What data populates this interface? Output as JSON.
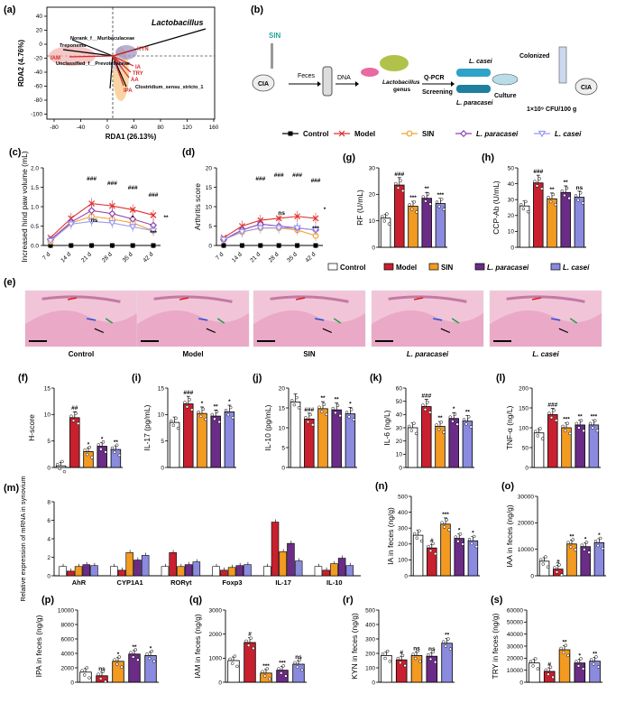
{
  "colors": {
    "control": "#ffffff",
    "model": "#c8202e",
    "sin": "#f39a21",
    "para": "#6a2c86",
    "casei": "#8a8adf",
    "legend_control": "#000000",
    "legend_model": "#e03030",
    "legend_sin": "#f5a030",
    "legend_para": "#8e44ad",
    "legend_casei": "#9a9aee"
  },
  "legend_top": [
    "Control",
    "Model",
    "SIN",
    "L. paracasei",
    "L. casei"
  ],
  "legend_bar": [
    "Control",
    "Model",
    "SIN",
    "L. paracasei",
    "L. casei"
  ],
  "panel_a": {
    "label": "(a)",
    "xlabel": "RDA1 (26.13%)",
    "ylabel": "RDA2 (4.76%)",
    "xticks": [
      "-80",
      "-40",
      "0",
      "40",
      "80",
      "120",
      "160"
    ],
    "yticks": [
      "40",
      "20",
      "0",
      "-20",
      "-40",
      "-60",
      "-80",
      "-100"
    ],
    "arrow_labels": [
      "Lactobacillus",
      "Norank_f__Muribaculaceae",
      "Treponema",
      "IAM",
      "KYN",
      "Unclassified_f__Prevotellaceae",
      "IA",
      "TRY",
      "AA",
      "IPA",
      "Clostridium_sensu_stricto_1"
    ]
  },
  "panel_b": {
    "label": "(b)",
    "texts": {
      "sin": "SIN",
      "cia1": "CIA",
      "feces": "Feces",
      "dna": "DNA",
      "lacto": "Lactobacillus",
      "genus": "genus",
      "qpcr": "Q-PCR",
      "screening": "Screening",
      "lcasei": "L. casei",
      "lpara": "L. paracasei",
      "culture": "Culture",
      "colonized": "Colonized",
      "cia2": "CIA",
      "dose": "1×10⁹ CFU/100 g"
    }
  },
  "line_xticks": [
    "7 d",
    "14 d",
    "21 d",
    "28 d",
    "35 d",
    "42 d"
  ],
  "panel_c": {
    "label": "(c)",
    "ylabel": "Increased hind paw volume (mL)",
    "yticks": [
      "0.0",
      "0.5",
      "1.0",
      "1.5",
      "2.0"
    ],
    "ylim": [
      0,
      2.0
    ],
    "sig": [
      "###",
      "###",
      "###",
      "###",
      "**",
      "*",
      "ns",
      "***"
    ]
  },
  "panel_d": {
    "label": "(d)",
    "ylabel": "Arthritis score",
    "yticks": [
      "0",
      "5",
      "10",
      "15",
      "20"
    ],
    "ylim": [
      0,
      20
    ],
    "sig": [
      "###",
      "###",
      "###",
      "###",
      "*",
      "ns",
      "***"
    ]
  },
  "bar_panels": {
    "g": {
      "label": "(g)",
      "ylabel": "RF (U/mL)",
      "yticks": [
        "0",
        "10",
        "20",
        "30"
      ],
      "ymax": 30,
      "sig": [
        "###",
        "***",
        "**",
        "***"
      ]
    },
    "h": {
      "label": "(h)",
      "ylabel": "CCP-Ab (U/mL)",
      "yticks": [
        "0",
        "10",
        "20",
        "30",
        "40",
        "50"
      ],
      "ymax": 50,
      "sig": [
        "###",
        "**",
        "**",
        "ns"
      ]
    },
    "f": {
      "label": "(f)",
      "ylabel": "H-score",
      "yticks": [
        "0",
        "5",
        "10",
        "15"
      ],
      "ymax": 15,
      "sig": [
        "##",
        "*",
        "*",
        "**"
      ]
    },
    "i": {
      "label": "(i)",
      "ylabel": "IL-17 (pg/mL)",
      "yticks": [
        "0",
        "5",
        "10",
        "15"
      ],
      "ymax": 15,
      "sig": [
        "###",
        "*",
        "**",
        "*"
      ]
    },
    "j": {
      "label": "(j)",
      "ylabel": "IL-10 (pg/mL)",
      "yticks": [
        "0",
        "5",
        "10",
        "15",
        "20"
      ],
      "ymax": 20,
      "sig": [
        "###",
        "**",
        "**",
        "*"
      ]
    },
    "k": {
      "label": "(k)",
      "ylabel": "IL-6 (ng/L)",
      "yticks": [
        "0",
        "10",
        "20",
        "30",
        "40",
        "50",
        "60"
      ],
      "ymax": 60,
      "sig": [
        "###",
        "**",
        "*",
        "**"
      ]
    },
    "l": {
      "label": "(l)",
      "ylabel": "TNF-α (ng/L)",
      "yticks": [
        "0",
        "50",
        "100",
        "150",
        "200"
      ],
      "ymax": 200,
      "sig": [
        "###",
        "***",
        "**",
        "***"
      ]
    },
    "n": {
      "label": "(n)",
      "ylabel": "IA in feces (ng/g)",
      "yticks": [
        "0",
        "100",
        "200",
        "300",
        "400",
        "500"
      ],
      "ymax": 500,
      "sig": [
        "#",
        "***",
        "*",
        "*"
      ]
    },
    "o": {
      "label": "(o)",
      "ylabel": "IAA in feces (ng/g)",
      "yticks": [
        "0",
        "10000",
        "20000",
        "30000"
      ],
      "ymax": 30000,
      "sig": [
        "#",
        "**",
        "*",
        "*"
      ]
    },
    "p": {
      "label": "(p)",
      "ylabel": "IPA in feces (ng/g)",
      "yticks": [
        "0",
        "2000",
        "4000",
        "6000",
        "8000",
        "10000"
      ],
      "ymax": 10000,
      "sig": [
        "ns",
        "*",
        "**",
        "*"
      ]
    },
    "q": {
      "label": "(q)",
      "ylabel": "IAM in feces (ng/g)",
      "yticks": [
        "0",
        "1000",
        "2000",
        "3000"
      ],
      "ymax": 3000,
      "sig": [
        "#",
        "***",
        "***",
        "ns"
      ]
    },
    "r": {
      "label": "(r)",
      "ylabel": "KYN in feces (ng/g)",
      "yticks": [
        "0",
        "100",
        "200",
        "300",
        "400",
        "500"
      ],
      "ymax": 500,
      "sig": [
        "#",
        "ns",
        "ns",
        "**"
      ]
    },
    "s": {
      "label": "(s)",
      "ylabel": "TRY in feces (ng/g)",
      "yticks": [
        "0",
        "10000",
        "20000",
        "30000",
        "40000",
        "50000",
        "60000"
      ],
      "ymax": 60000,
      "sig": [
        "#",
        "**",
        "*",
        "**"
      ]
    }
  },
  "panel_e": {
    "label": "(e)",
    "captions": [
      "Control",
      "Model",
      "SIN",
      "L. paracasei",
      "L. casei"
    ]
  },
  "panel_m": {
    "label": "(m)",
    "ylabel": "Relative expression of mRNA in synovium",
    "yticks": [
      "0",
      "2",
      "4",
      "6",
      "8"
    ],
    "ymax": 8,
    "genes": [
      "AhR",
      "CYP1A1",
      "RORγt",
      "Foxp3",
      "IL-17",
      "IL-10"
    ]
  },
  "chart_data": [
    {
      "panel": "c",
      "type": "line",
      "x": [
        "7 d",
        "14 d",
        "21 d",
        "28 d",
        "35 d",
        "42 d"
      ],
      "series": [
        {
          "name": "Control",
          "values": [
            0.0,
            0.0,
            0.0,
            0.0,
            0.0,
            0.0
          ]
        },
        {
          "name": "Model",
          "values": [
            0.2,
            0.7,
            1.08,
            1.02,
            0.92,
            0.78
          ]
        },
        {
          "name": "SIN",
          "values": [
            0.1,
            0.58,
            0.75,
            0.68,
            0.58,
            0.38
          ]
        },
        {
          "name": "L. paracasei",
          "values": [
            0.15,
            0.6,
            0.9,
            0.82,
            0.68,
            0.52
          ]
        },
        {
          "name": "L. casei",
          "values": [
            0.12,
            0.55,
            0.62,
            0.58,
            0.48,
            0.38
          ]
        }
      ]
    },
    {
      "panel": "d",
      "type": "line",
      "x": [
        "7 d",
        "14 d",
        "21 d",
        "28 d",
        "35 d",
        "42 d"
      ],
      "series": [
        {
          "name": "Control",
          "values": [
            0,
            0,
            0,
            0,
            0,
            0
          ]
        },
        {
          "name": "Model",
          "values": [
            2.0,
            5.0,
            6.5,
            7.0,
            7.5,
            7.0
          ]
        },
        {
          "name": "SIN",
          "values": [
            1.5,
            3.5,
            4.5,
            4.5,
            4.0,
            2.5
          ]
        },
        {
          "name": "L. paracasei",
          "values": [
            1.5,
            4.0,
            5.5,
            5.0,
            4.5,
            4.0
          ]
        },
        {
          "name": "L. casei",
          "values": [
            1.5,
            3.5,
            4.5,
            4.5,
            4.5,
            4.0
          ]
        }
      ]
    },
    {
      "panel": "g",
      "type": "bar",
      "categories": [
        "Control",
        "Model",
        "SIN",
        "L. paracasei",
        "L. casei"
      ],
      "values": [
        11,
        23.5,
        15.5,
        18.5,
        16.5
      ]
    },
    {
      "panel": "h",
      "type": "bar",
      "categories": [
        "Control",
        "Model",
        "SIN",
        "L. paracasei",
        "L. casei"
      ],
      "values": [
        26,
        40.5,
        30.5,
        34.5,
        31.5
      ]
    },
    {
      "panel": "f",
      "type": "bar",
      "categories": [
        "Control",
        "Model",
        "SIN",
        "L. paracasei",
        "L. casei"
      ],
      "values": [
        0.3,
        9.4,
        3.0,
        4.0,
        3.4
      ]
    },
    {
      "panel": "i",
      "type": "bar",
      "categories": [
        "Control",
        "Model",
        "SIN",
        "L. paracasei",
        "L. casei"
      ],
      "values": [
        8.5,
        12.0,
        10.2,
        9.7,
        10.5
      ]
    },
    {
      "panel": "j",
      "type": "bar",
      "categories": [
        "Control",
        "Model",
        "SIN",
        "L. paracasei",
        "L. casei"
      ],
      "values": [
        16.5,
        12.2,
        14.8,
        14.5,
        13.5
      ]
    },
    {
      "panel": "k",
      "type": "bar",
      "categories": [
        "Control",
        "Model",
        "SIN",
        "L. paracasei",
        "L. casei"
      ],
      "values": [
        30,
        46,
        31,
        37,
        35
      ]
    },
    {
      "panel": "l",
      "type": "bar",
      "categories": [
        "Control",
        "Model",
        "SIN",
        "L. paracasei",
        "L. casei"
      ],
      "values": [
        87,
        133,
        100,
        107,
        107
      ]
    },
    {
      "panel": "m",
      "type": "bar",
      "categories": [
        "AhR",
        "CYP1A1",
        "RORγt",
        "Foxp3",
        "IL-17",
        "IL-10"
      ],
      "series": [
        {
          "name": "Control",
          "values": [
            1.0,
            1.0,
            1.0,
            1.0,
            1.0,
            1.0
          ]
        },
        {
          "name": "Model",
          "values": [
            0.5,
            0.6,
            2.5,
            0.6,
            5.8,
            0.6
          ]
        },
        {
          "name": "SIN",
          "values": [
            1.0,
            2.5,
            1.0,
            0.9,
            2.6,
            1.3
          ]
        },
        {
          "name": "L. paracasei",
          "values": [
            1.2,
            1.7,
            1.2,
            1.1,
            3.5,
            1.9
          ]
        },
        {
          "name": "L. casei",
          "values": [
            1.1,
            2.2,
            1.5,
            1.2,
            1.6,
            1.1
          ]
        }
      ]
    },
    {
      "panel": "n",
      "type": "bar",
      "categories": [
        "Control",
        "Model",
        "SIN",
        "L. paracasei",
        "L. casei"
      ],
      "values": [
        255,
        175,
        325,
        235,
        220
      ]
    },
    {
      "panel": "o",
      "type": "bar",
      "categories": [
        "Control",
        "Model",
        "SIN",
        "L. paracasei",
        "L. casei"
      ],
      "values": [
        5500,
        2500,
        12000,
        11000,
        12500
      ]
    },
    {
      "panel": "p",
      "type": "bar",
      "categories": [
        "Control",
        "Model",
        "SIN",
        "L. paracasei",
        "L. casei"
      ],
      "values": [
        1400,
        900,
        2900,
        3900,
        3700
      ]
    },
    {
      "panel": "q",
      "type": "bar",
      "categories": [
        "Control",
        "Model",
        "SIN",
        "L. paracasei",
        "L. casei"
      ],
      "values": [
        900,
        1650,
        380,
        500,
        750
      ]
    },
    {
      "panel": "r",
      "type": "bar",
      "categories": [
        "Control",
        "Model",
        "SIN",
        "L. paracasei",
        "L. casei"
      ],
      "values": [
        185,
        155,
        185,
        180,
        270
      ]
    },
    {
      "panel": "s",
      "type": "bar",
      "categories": [
        "Control",
        "Model",
        "SIN",
        "L. paracasei",
        "L. casei"
      ],
      "values": [
        16000,
        9000,
        27000,
        16000,
        17500
      ]
    }
  ]
}
